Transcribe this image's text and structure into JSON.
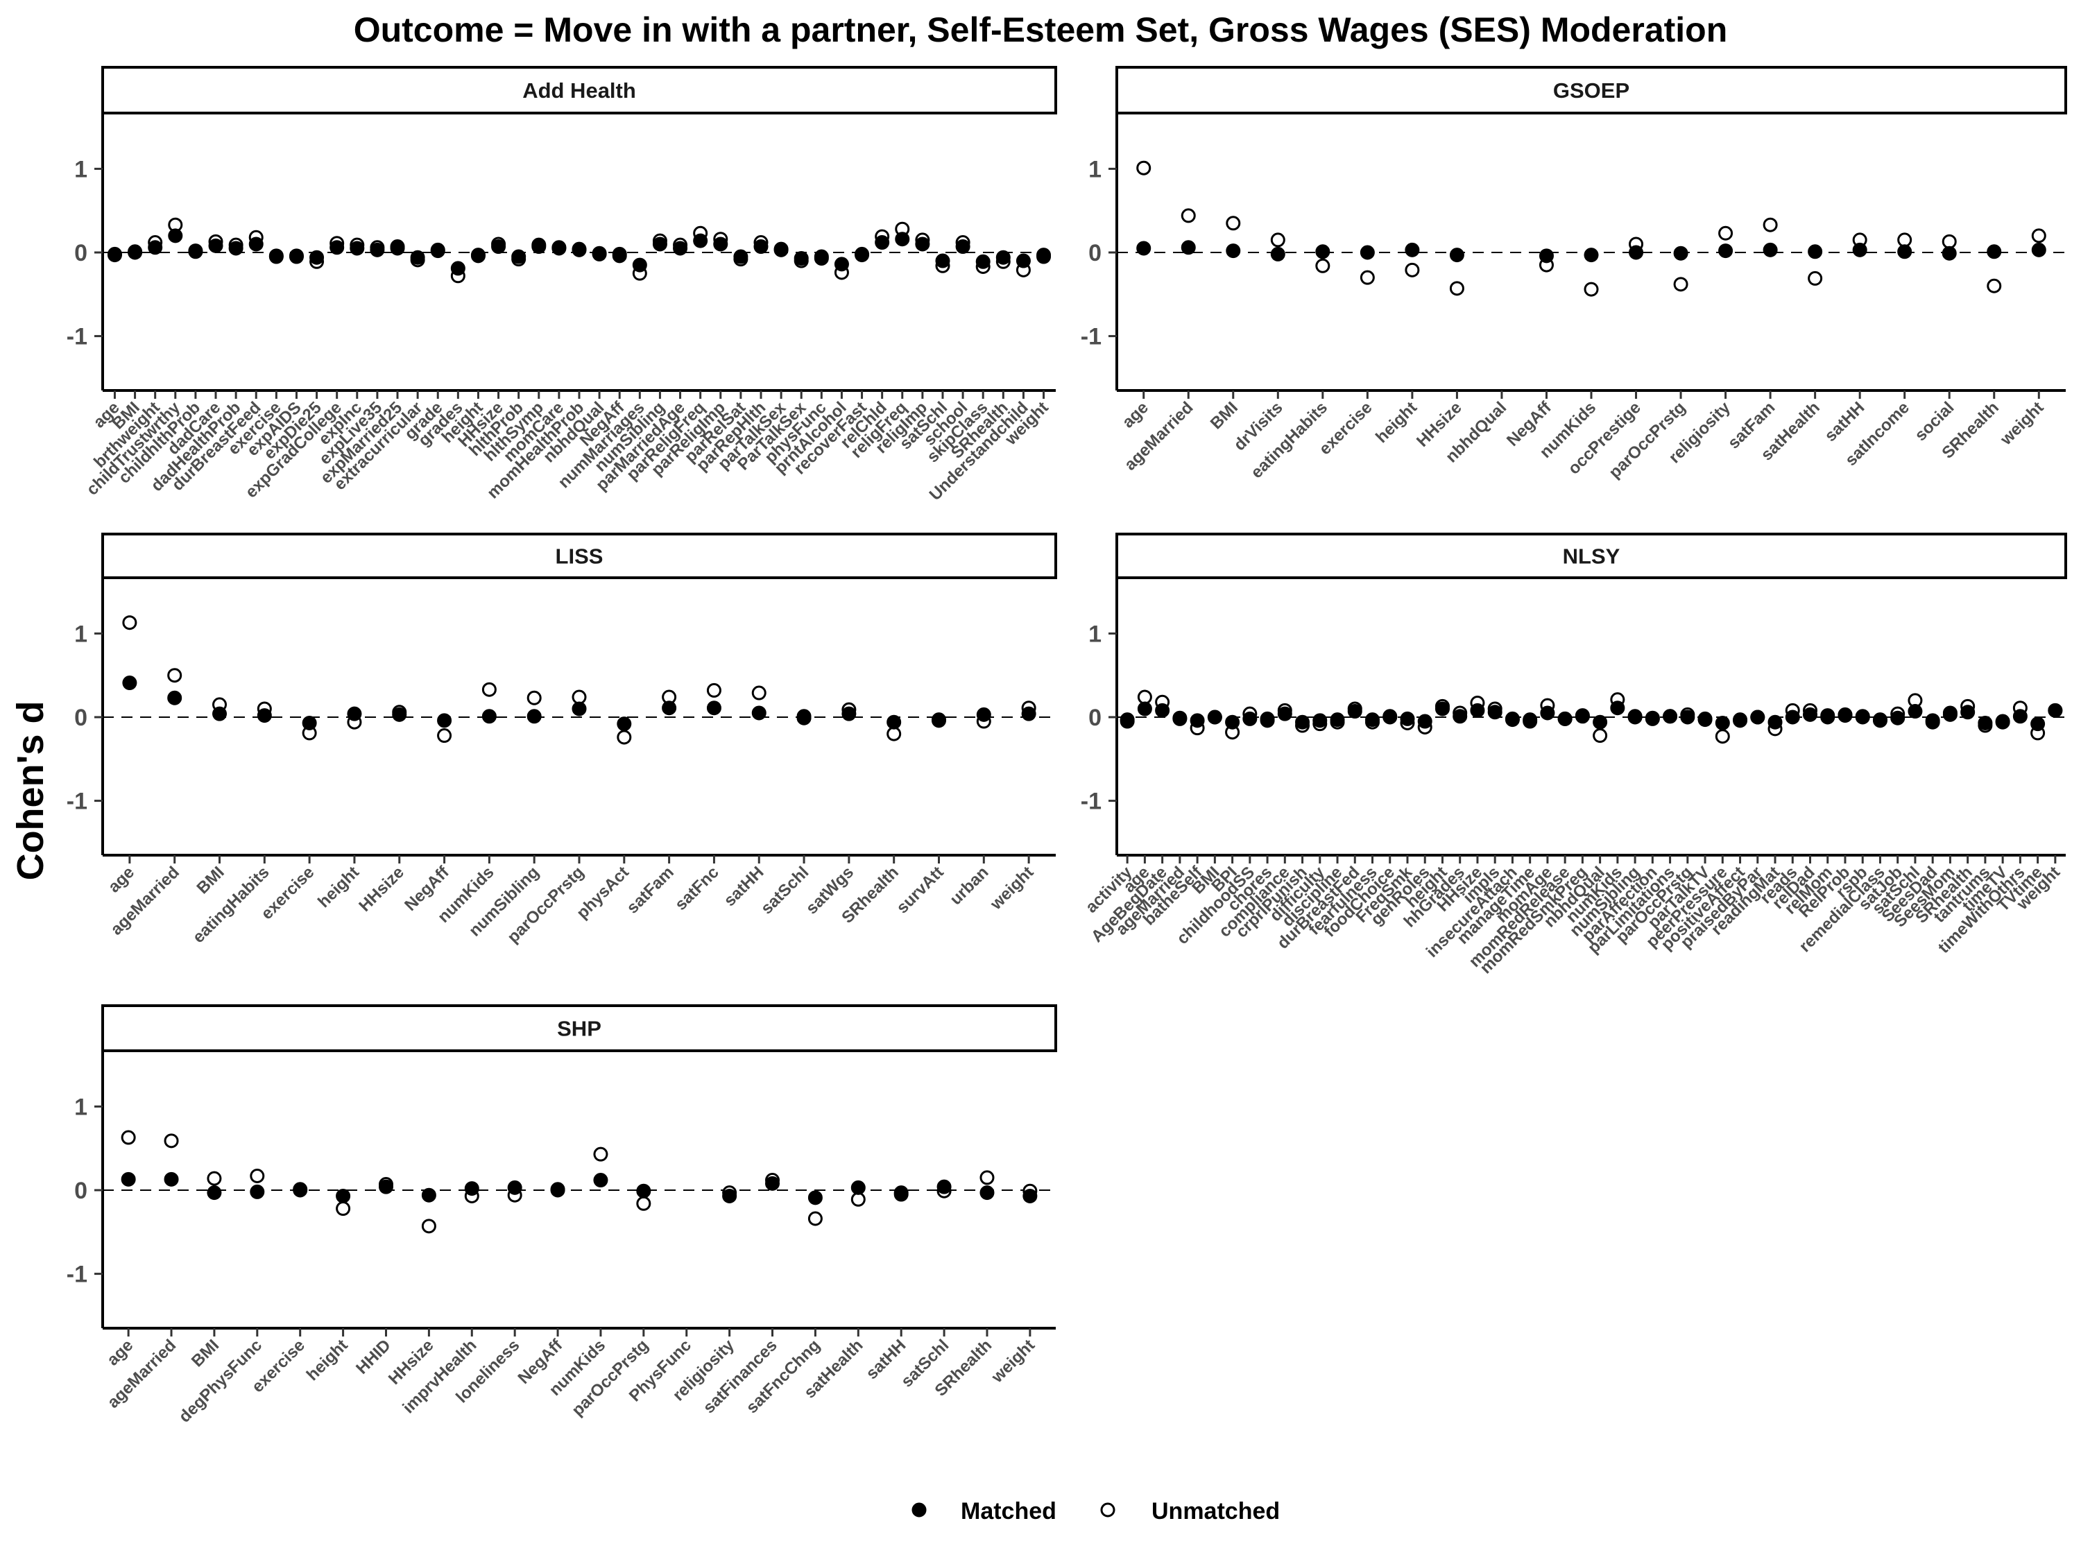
{
  "title": "Outcome = Move in with a partner, Self-Esteem Set, Gross Wages (SES) Moderation",
  "ylabel": "Cohen's d",
  "legend": {
    "matched": "Matched",
    "unmatched": "Unmatched",
    "placement": "bottom"
  },
  "chart_data": {
    "type": "scatter",
    "facet_type": "faceted dot plot",
    "ylim": [
      -1.65,
      1.65
    ],
    "yticks": [
      -1,
      0,
      1
    ],
    "reference_line": 0,
    "grid": false,
    "panels": [
      {
        "name": "Add Health",
        "categories": [
          "age",
          "BMI",
          "brthweight",
          "childTrustwrthy",
          "childhlthProb",
          "dadCare",
          "dadHealthProb",
          "durBreastFeed",
          "exercise",
          "expAIDS",
          "expDie25",
          "expGradCollege",
          "expInc",
          "expLive35",
          "expMarried25",
          "extracurricular",
          "grade",
          "grades",
          "height",
          "HHsize",
          "hlthProb",
          "hlthSymp",
          "momCare",
          "momHealthProb",
          "nbhdQual",
          "NegAff",
          "numMarriages",
          "numSibling",
          "parMarriedAge",
          "parReligFreq",
          "parReligImp",
          "parRelSat",
          "parRepHlth",
          "parTalkSex",
          "ParTalkSex",
          "physFunc",
          "prntAlcohol",
          "recoverFast",
          "relChld",
          "religFreq",
          "religImp",
          "satSchl",
          "school",
          "skipClass",
          "SRhealth",
          "Understandchild",
          "weight"
        ],
        "series": [
          {
            "name": "Matched",
            "values": [
              -0.02,
              0.0,
              0.06,
              0.2,
              0.01,
              0.08,
              0.05,
              0.1,
              -0.04,
              -0.04,
              -0.06,
              0.06,
              0.05,
              0.03,
              0.05,
              -0.06,
              0.02,
              -0.19,
              -0.04,
              0.07,
              -0.05,
              0.07,
              0.05,
              0.03,
              -0.01,
              -0.02,
              -0.15,
              0.1,
              0.05,
              0.14,
              0.1,
              -0.05,
              0.07,
              0.03,
              -0.07,
              -0.05,
              -0.14,
              -0.03,
              0.12,
              0.16,
              0.1,
              -0.1,
              0.07,
              -0.11,
              -0.06,
              -0.1,
              -0.03
            ]
          },
          {
            "name": "Unmatched",
            "values": [
              -0.03,
              0.01,
              0.12,
              0.33,
              0.02,
              0.13,
              0.09,
              0.18,
              -0.05,
              -0.05,
              -0.11,
              0.11,
              0.09,
              0.06,
              0.07,
              -0.09,
              0.03,
              -0.28,
              -0.03,
              0.1,
              -0.08,
              0.09,
              0.06,
              0.04,
              -0.02,
              -0.04,
              -0.25,
              0.14,
              0.09,
              0.23,
              0.16,
              -0.08,
              0.12,
              0.04,
              -0.1,
              -0.07,
              -0.24,
              -0.02,
              0.19,
              0.28,
              0.15,
              -0.16,
              0.12,
              -0.17,
              -0.11,
              -0.21,
              -0.05
            ]
          }
        ]
      },
      {
        "name": "GSOEP",
        "categories": [
          "age",
          "ageMarried",
          "BMI",
          "drVisits",
          "eatingHabits",
          "exercise",
          "height",
          "HHsize",
          "nbhdQual",
          "NegAff",
          "numKids",
          "occPrestige",
          "parOccPrstg",
          "religiosity",
          "satFam",
          "satHealth",
          "satHH",
          "satIncome",
          "social",
          "SRhealth",
          "weight"
        ],
        "series": [
          {
            "name": "Matched",
            "values": [
              0.05,
              0.06,
              0.02,
              -0.02,
              0.01,
              0.0,
              0.03,
              -0.03,
              null,
              -0.04,
              -0.03,
              0.0,
              -0.01,
              0.02,
              0.03,
              0.01,
              0.03,
              0.01,
              -0.01,
              0.01,
              0.03
            ]
          },
          {
            "name": "Unmatched",
            "values": [
              1.01,
              0.44,
              0.35,
              0.15,
              -0.16,
              -0.3,
              -0.21,
              -0.43,
              null,
              -0.15,
              -0.44,
              0.1,
              -0.38,
              0.23,
              0.33,
              -0.31,
              0.15,
              0.15,
              0.13,
              -0.4,
              0.2
            ]
          }
        ]
      },
      {
        "name": "LISS",
        "categories": [
          "age",
          "ageMarried",
          "BMI",
          "eatingHabits",
          "exercise",
          "height",
          "HHsize",
          "NegAff",
          "numKids",
          "numSibling",
          "parOccPrstg",
          "physAct",
          "satFam",
          "satFnc",
          "satHH",
          "satSchl",
          "satWgs",
          "SRhealth",
          "survAtt",
          "urban",
          "weight"
        ],
        "series": [
          {
            "name": "Matched",
            "values": [
              0.41,
              0.23,
              0.04,
              0.02,
              -0.07,
              0.04,
              0.03,
              -0.04,
              0.01,
              0.01,
              0.1,
              -0.08,
              0.11,
              0.11,
              0.05,
              0.01,
              0.04,
              -0.06,
              -0.03,
              0.03,
              0.04
            ]
          },
          {
            "name": "Unmatched",
            "values": [
              1.13,
              0.5,
              0.15,
              0.1,
              -0.19,
              -0.06,
              0.06,
              -0.22,
              0.33,
              0.23,
              0.24,
              -0.24,
              0.24,
              0.32,
              0.29,
              -0.01,
              0.09,
              -0.2,
              -0.04,
              -0.05,
              0.11
            ]
          }
        ]
      },
      {
        "name": "NLSY",
        "categories": [
          "activity",
          "age",
          "AgeBegDate",
          "ageMarried",
          "batheSelf",
          "BMI",
          "BPI",
          "childhoodSS",
          "chores",
          "compliance",
          "crprlPunish",
          "difficulty",
          "discipline",
          "durBreastFed",
          "fearfulness",
          "foodChoice",
          "FreqSmk",
          "genRoles",
          "height",
          "hhGrades",
          "HHsize",
          "impls",
          "insecureAttach",
          "manageTime",
          "momAge",
          "momRedRelease",
          "momRedSmkPreg",
          "nbhdQual",
          "numKids",
          "numSibling",
          "parAffection",
          "parLimitations",
          "parOccPrstg",
          "parTalkTV",
          "peerPressure",
          "positiveAffect",
          "praisedByPar",
          "readingMat",
          "reads",
          "relDad",
          "relMom",
          "RelProb",
          "rspb",
          "remedialClass",
          "satJob",
          "satSchl",
          "SeesDad",
          "SeesMom",
          "SRhealth",
          "tantrums",
          "timeTV",
          "timeWithOthrs",
          "TVtime",
          "weight"
        ],
        "series": [
          {
            "name": "Matched",
            "values": [
              -0.03,
              0.1,
              0.08,
              -0.01,
              -0.04,
              0.0,
              -0.06,
              -0.02,
              -0.02,
              0.04,
              -0.06,
              -0.04,
              -0.03,
              0.07,
              -0.03,
              0.01,
              -0.02,
              -0.05,
              0.1,
              0.01,
              0.08,
              0.06,
              -0.02,
              -0.03,
              0.05,
              -0.02,
              0.02,
              -0.06,
              0.11,
              0.01,
              -0.01,
              0.01,
              0.0,
              -0.03,
              -0.07,
              -0.03,
              0.0,
              -0.06,
              0.0,
              0.03,
              0.0,
              0.02,
              0.0,
              -0.03,
              -0.01,
              0.07,
              -0.04,
              0.03,
              0.06,
              -0.07,
              -0.05,
              0.01,
              -0.08,
              0.08
            ]
          },
          {
            "name": "Unmatched",
            "values": [
              -0.05,
              0.24,
              0.18,
              -0.02,
              -0.13,
              0.0,
              -0.18,
              0.04,
              -0.04,
              0.08,
              -0.1,
              -0.08,
              -0.06,
              0.1,
              -0.06,
              0.0,
              -0.07,
              -0.12,
              0.13,
              0.05,
              0.17,
              0.1,
              -0.03,
              -0.05,
              0.14,
              -0.02,
              0.01,
              -0.22,
              0.21,
              0.0,
              -0.02,
              0.01,
              0.03,
              -0.02,
              -0.23,
              -0.04,
              0.0,
              -0.14,
              0.08,
              0.08,
              0.02,
              0.03,
              0.01,
              -0.04,
              0.04,
              0.2,
              -0.06,
              0.05,
              0.13,
              -0.1,
              -0.06,
              0.11,
              -0.19,
              0.08
            ]
          }
        ]
      },
      {
        "name": "SHP",
        "categories": [
          "age",
          "ageMarried",
          "BMI",
          "degPhysFunc",
          "exercise",
          "height",
          "HHID",
          "HHsize",
          "imprvHealth",
          "loneliness",
          "NegAff",
          "numKids",
          "parOccPrstg",
          "PhysFunc",
          "religiosity",
          "satFinances",
          "satFncChng",
          "satHealth",
          "satHH",
          "satSchl",
          "SRhealth",
          "weight"
        ],
        "series": [
          {
            "name": "Matched",
            "values": [
              0.13,
              0.13,
              -0.03,
              -0.02,
              0.0,
              -0.07,
              0.04,
              -0.06,
              0.02,
              0.03,
              0.0,
              0.12,
              -0.01,
              null,
              -0.07,
              0.08,
              -0.09,
              0.03,
              -0.05,
              0.04,
              -0.03,
              -0.07
            ]
          },
          {
            "name": "Unmatched",
            "values": [
              0.63,
              0.59,
              0.14,
              0.17,
              0.01,
              -0.22,
              0.07,
              -0.43,
              -0.07,
              -0.06,
              0.01,
              0.43,
              -0.16,
              null,
              -0.03,
              0.12,
              -0.34,
              -0.11,
              -0.03,
              -0.01,
              0.15,
              -0.01
            ]
          }
        ]
      }
    ]
  }
}
